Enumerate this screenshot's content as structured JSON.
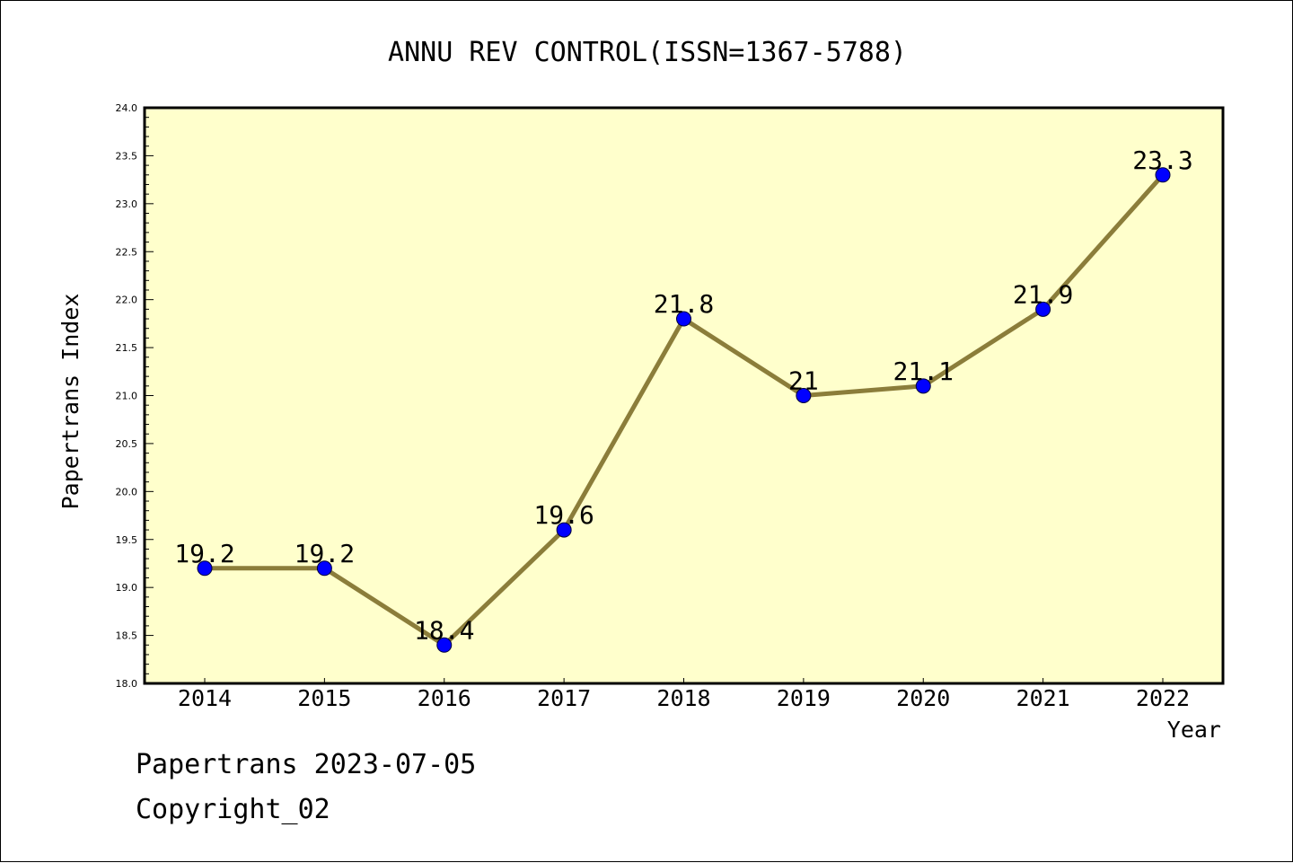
{
  "chart_data": {
    "type": "line",
    "title": "ANNU REV CONTROL(ISSN=1367-5788)",
    "xlabel": "Year",
    "ylabel": "Papertrans Index",
    "categories": [
      "2014",
      "2015",
      "2016",
      "2017",
      "2018",
      "2019",
      "2020",
      "2021",
      "2022"
    ],
    "series": [
      {
        "values": [
          19.2,
          19.2,
          18.4,
          19.6,
          21.8,
          21.0,
          21.1,
          21.9,
          23.3
        ]
      }
    ],
    "data_labels": [
      "19.2",
      "19.2",
      "18.4",
      "19.6",
      "21.8",
      "21",
      "21.1",
      "21.9",
      "23.3"
    ],
    "ylim": [
      18.0,
      24.0
    ],
    "yticks": [
      "18.0",
      "18.5",
      "19.0",
      "19.5",
      "20.0",
      "20.5",
      "21.0",
      "21.5",
      "22.0",
      "22.5",
      "23.0",
      "23.5",
      "24.0"
    ],
    "grid": false,
    "legend": "none",
    "colors": {
      "plot_background": "#ffffcc",
      "line": "#8b7d3a",
      "marker": "#0000ff",
      "marker_edge": "#00003a"
    }
  },
  "footer": {
    "line1": "Papertrans 2023-07-05",
    "line2": "Copyright_02"
  }
}
